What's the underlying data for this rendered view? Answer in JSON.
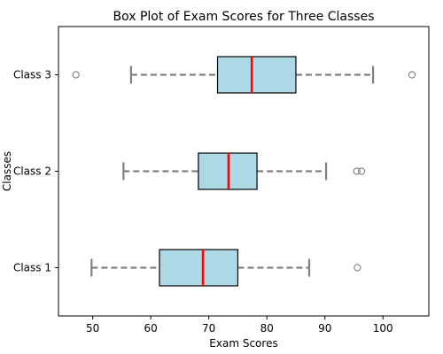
{
  "chart_data": {
    "type": "boxplot",
    "orientation": "horizontal",
    "title": "Box Plot of Exam Scores for Three Classes",
    "xlabel": "Exam Scores",
    "ylabel": "Classes",
    "xlim": [
      44.1,
      107.9
    ],
    "xticks": [
      50,
      60,
      70,
      80,
      90,
      100
    ],
    "grid": false,
    "legend": "none",
    "categories": [
      "Class 1",
      "Class 2",
      "Class 3"
    ],
    "series": [
      {
        "category": "Class 1",
        "whisker_low": 49.8,
        "q1": 61.5,
        "median": 69.0,
        "q3": 75.0,
        "whisker_high": 87.3,
        "outliers": [
          95.6
        ]
      },
      {
        "category": "Class 2",
        "whisker_low": 55.3,
        "q1": 68.2,
        "median": 73.4,
        "q3": 78.3,
        "whisker_high": 90.2,
        "outliers": [
          95.5,
          96.3
        ]
      },
      {
        "category": "Class 3",
        "whisker_low": 56.6,
        "q1": 71.5,
        "median": 77.4,
        "q3": 85.0,
        "whisker_high": 98.3,
        "outliers": [
          47.1,
          105.0
        ]
      }
    ],
    "colors": {
      "box_fill": "#add8e6",
      "box_edge": "#000000",
      "median": "#ff0000",
      "whisker": "#808080",
      "outlier_edge": "#808080"
    }
  }
}
